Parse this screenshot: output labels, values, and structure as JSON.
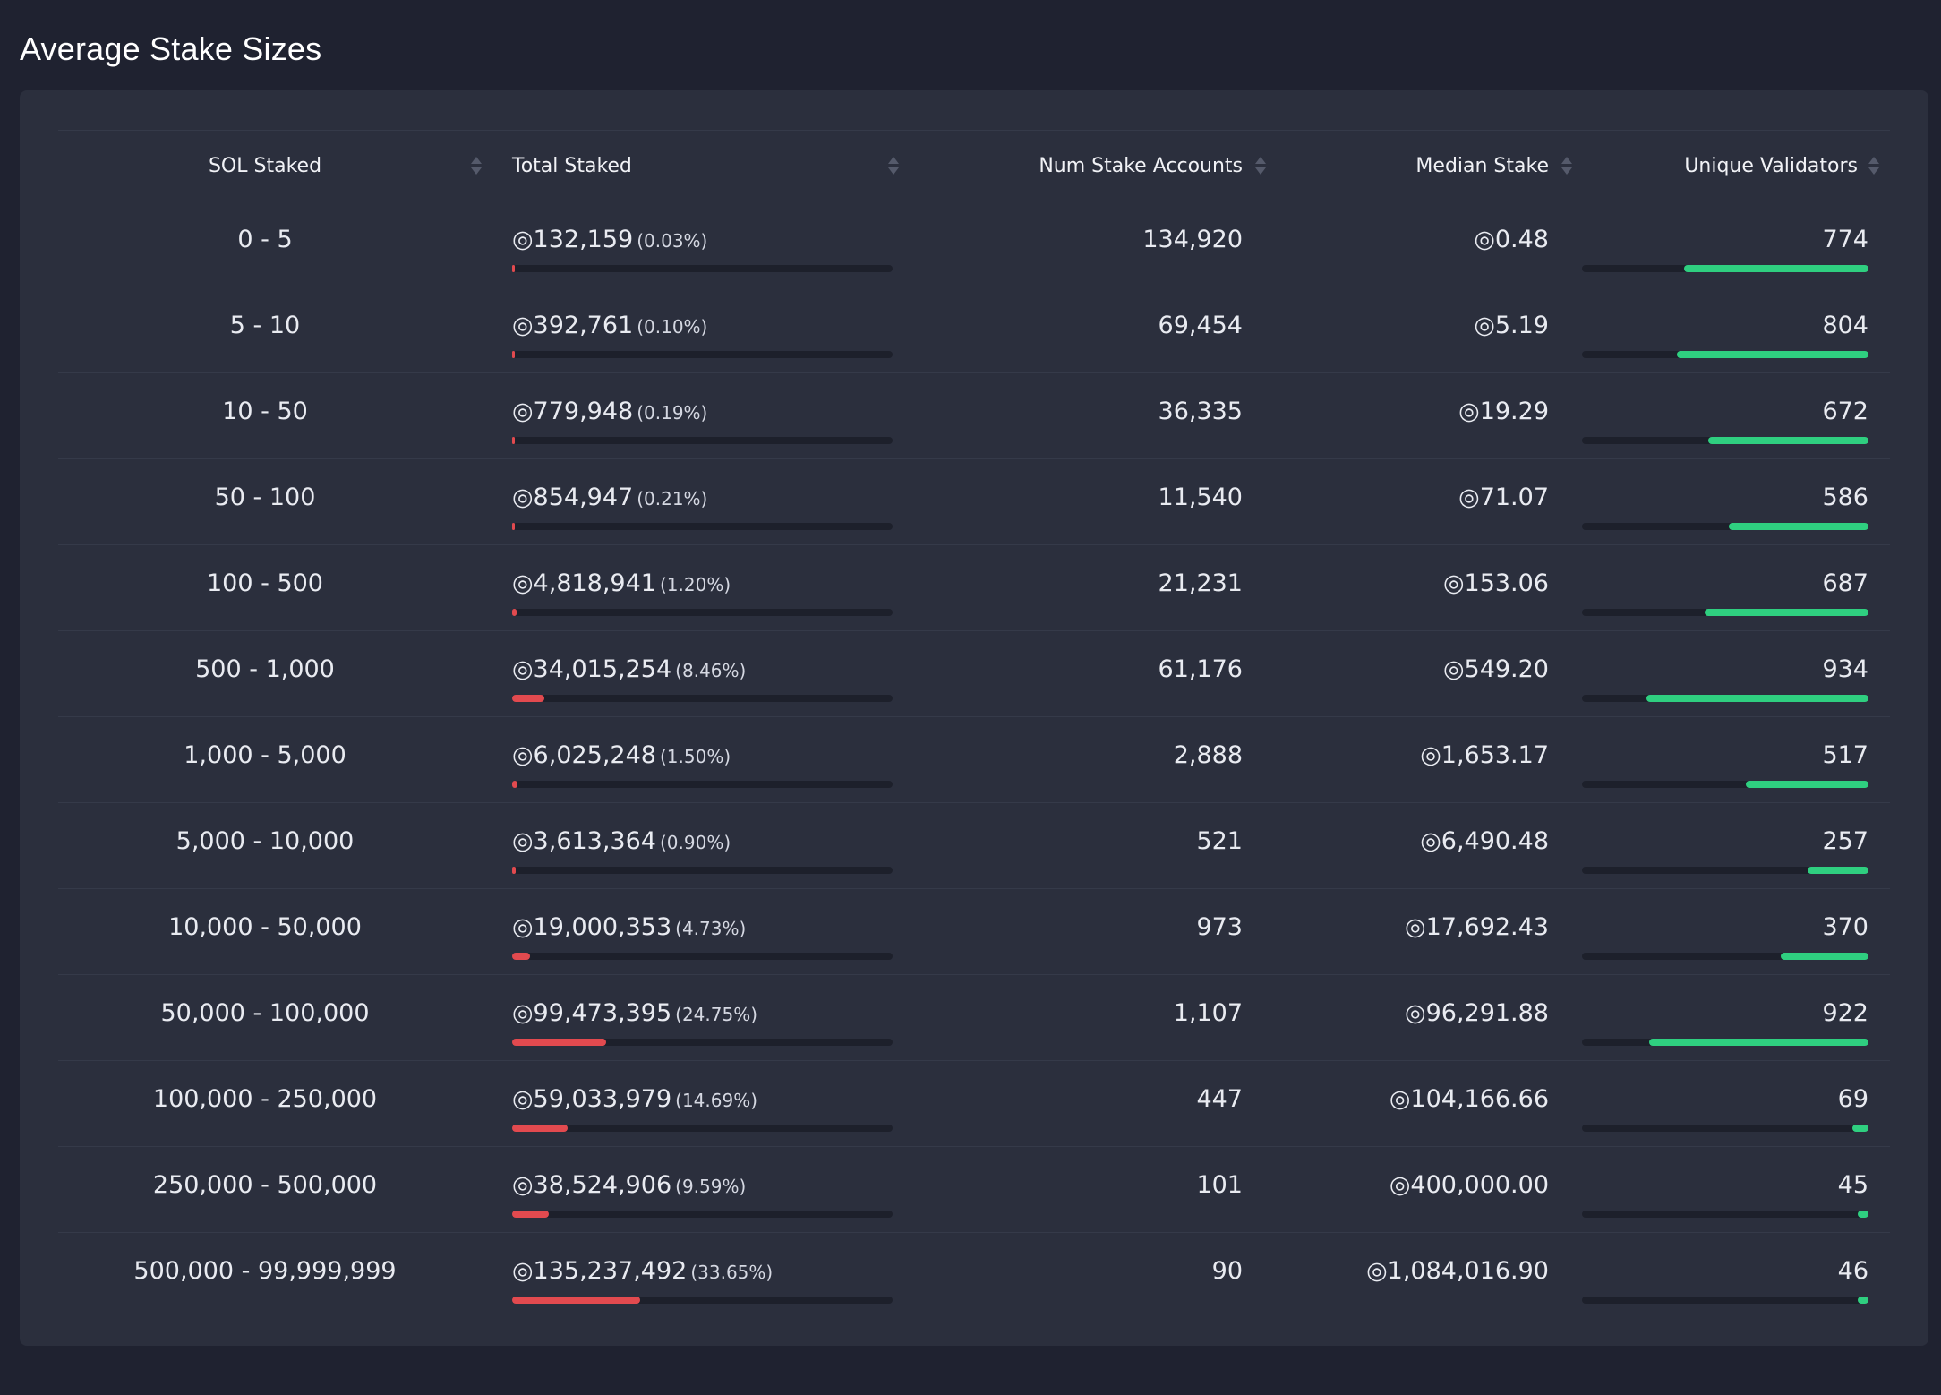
{
  "page": {
    "title": "Average Stake Sizes"
  },
  "table": {
    "headers": {
      "range": "SOL Staked",
      "total": "Total Staked",
      "accounts": "Num Stake Accounts",
      "median": "Median Stake",
      "validators": "Unique Validators"
    },
    "rows": [
      {
        "range": "0 - 5",
        "total": "◎132,159",
        "pct": "(0.03%)",
        "total_fraction": 0.0003,
        "accounts": "134,920",
        "median": "◎0.48",
        "validators": "774",
        "validators_fraction": 0.643
      },
      {
        "range": "5 - 10",
        "total": "◎392,761",
        "pct": "(0.10%)",
        "total_fraction": 0.001,
        "accounts": "69,454",
        "median": "◎5.19",
        "validators": "804",
        "validators_fraction": 0.668
      },
      {
        "range": "10 - 50",
        "total": "◎779,948",
        "pct": "(0.19%)",
        "total_fraction": 0.0019,
        "accounts": "36,335",
        "median": "◎19.29",
        "validators": "672",
        "validators_fraction": 0.558
      },
      {
        "range": "50 - 100",
        "total": "◎854,947",
        "pct": "(0.21%)",
        "total_fraction": 0.0021,
        "accounts": "11,540",
        "median": "◎71.07",
        "validators": "586",
        "validators_fraction": 0.487
      },
      {
        "range": "100 - 500",
        "total": "◎4,818,941",
        "pct": "(1.20%)",
        "total_fraction": 0.012,
        "accounts": "21,231",
        "median": "◎153.06",
        "validators": "687",
        "validators_fraction": 0.571
      },
      {
        "range": "500 - 1,000",
        "total": "◎34,015,254",
        "pct": "(8.46%)",
        "total_fraction": 0.0846,
        "accounts": "61,176",
        "median": "◎549.20",
        "validators": "934",
        "validators_fraction": 0.776
      },
      {
        "range": "1,000 - 5,000",
        "total": "◎6,025,248",
        "pct": "(1.50%)",
        "total_fraction": 0.015,
        "accounts": "2,888",
        "median": "◎1,653.17",
        "validators": "517",
        "validators_fraction": 0.429
      },
      {
        "range": "5,000 - 10,000",
        "total": "◎3,613,364",
        "pct": "(0.90%)",
        "total_fraction": 0.009,
        "accounts": "521",
        "median": "◎6,490.48",
        "validators": "257",
        "validators_fraction": 0.213
      },
      {
        "range": "10,000 - 50,000",
        "total": "◎19,000,353",
        "pct": "(4.73%)",
        "total_fraction": 0.0473,
        "accounts": "973",
        "median": "◎17,692.43",
        "validators": "370",
        "validators_fraction": 0.307
      },
      {
        "range": "50,000 - 100,000",
        "total": "◎99,473,395",
        "pct": "(24.75%)",
        "total_fraction": 0.2475,
        "accounts": "1,107",
        "median": "◎96,291.88",
        "validators": "922",
        "validators_fraction": 0.766
      },
      {
        "range": "100,000 - 250,000",
        "total": "◎59,033,979",
        "pct": "(14.69%)",
        "total_fraction": 0.1469,
        "accounts": "447",
        "median": "◎104,166.66",
        "validators": "69",
        "validators_fraction": 0.057
      },
      {
        "range": "250,000 - 500,000",
        "total": "◎38,524,906",
        "pct": "(9.59%)",
        "total_fraction": 0.0959,
        "accounts": "101",
        "median": "◎400,000.00",
        "validators": "45",
        "validators_fraction": 0.037
      },
      {
        "range": "500,000 - 99,999,999",
        "total": "◎135,237,492",
        "pct": "(33.65%)",
        "total_fraction": 0.3365,
        "accounts": "90",
        "median": "◎1,084,016.90",
        "validators": "46",
        "validators_fraction": 0.038
      }
    ]
  },
  "colors": {
    "background": "#1f2230",
    "card": "#2b2f3d",
    "total_bar": "#e24a4f",
    "validators_bar": "#2fcf80",
    "bar_track": "#1d202b"
  }
}
